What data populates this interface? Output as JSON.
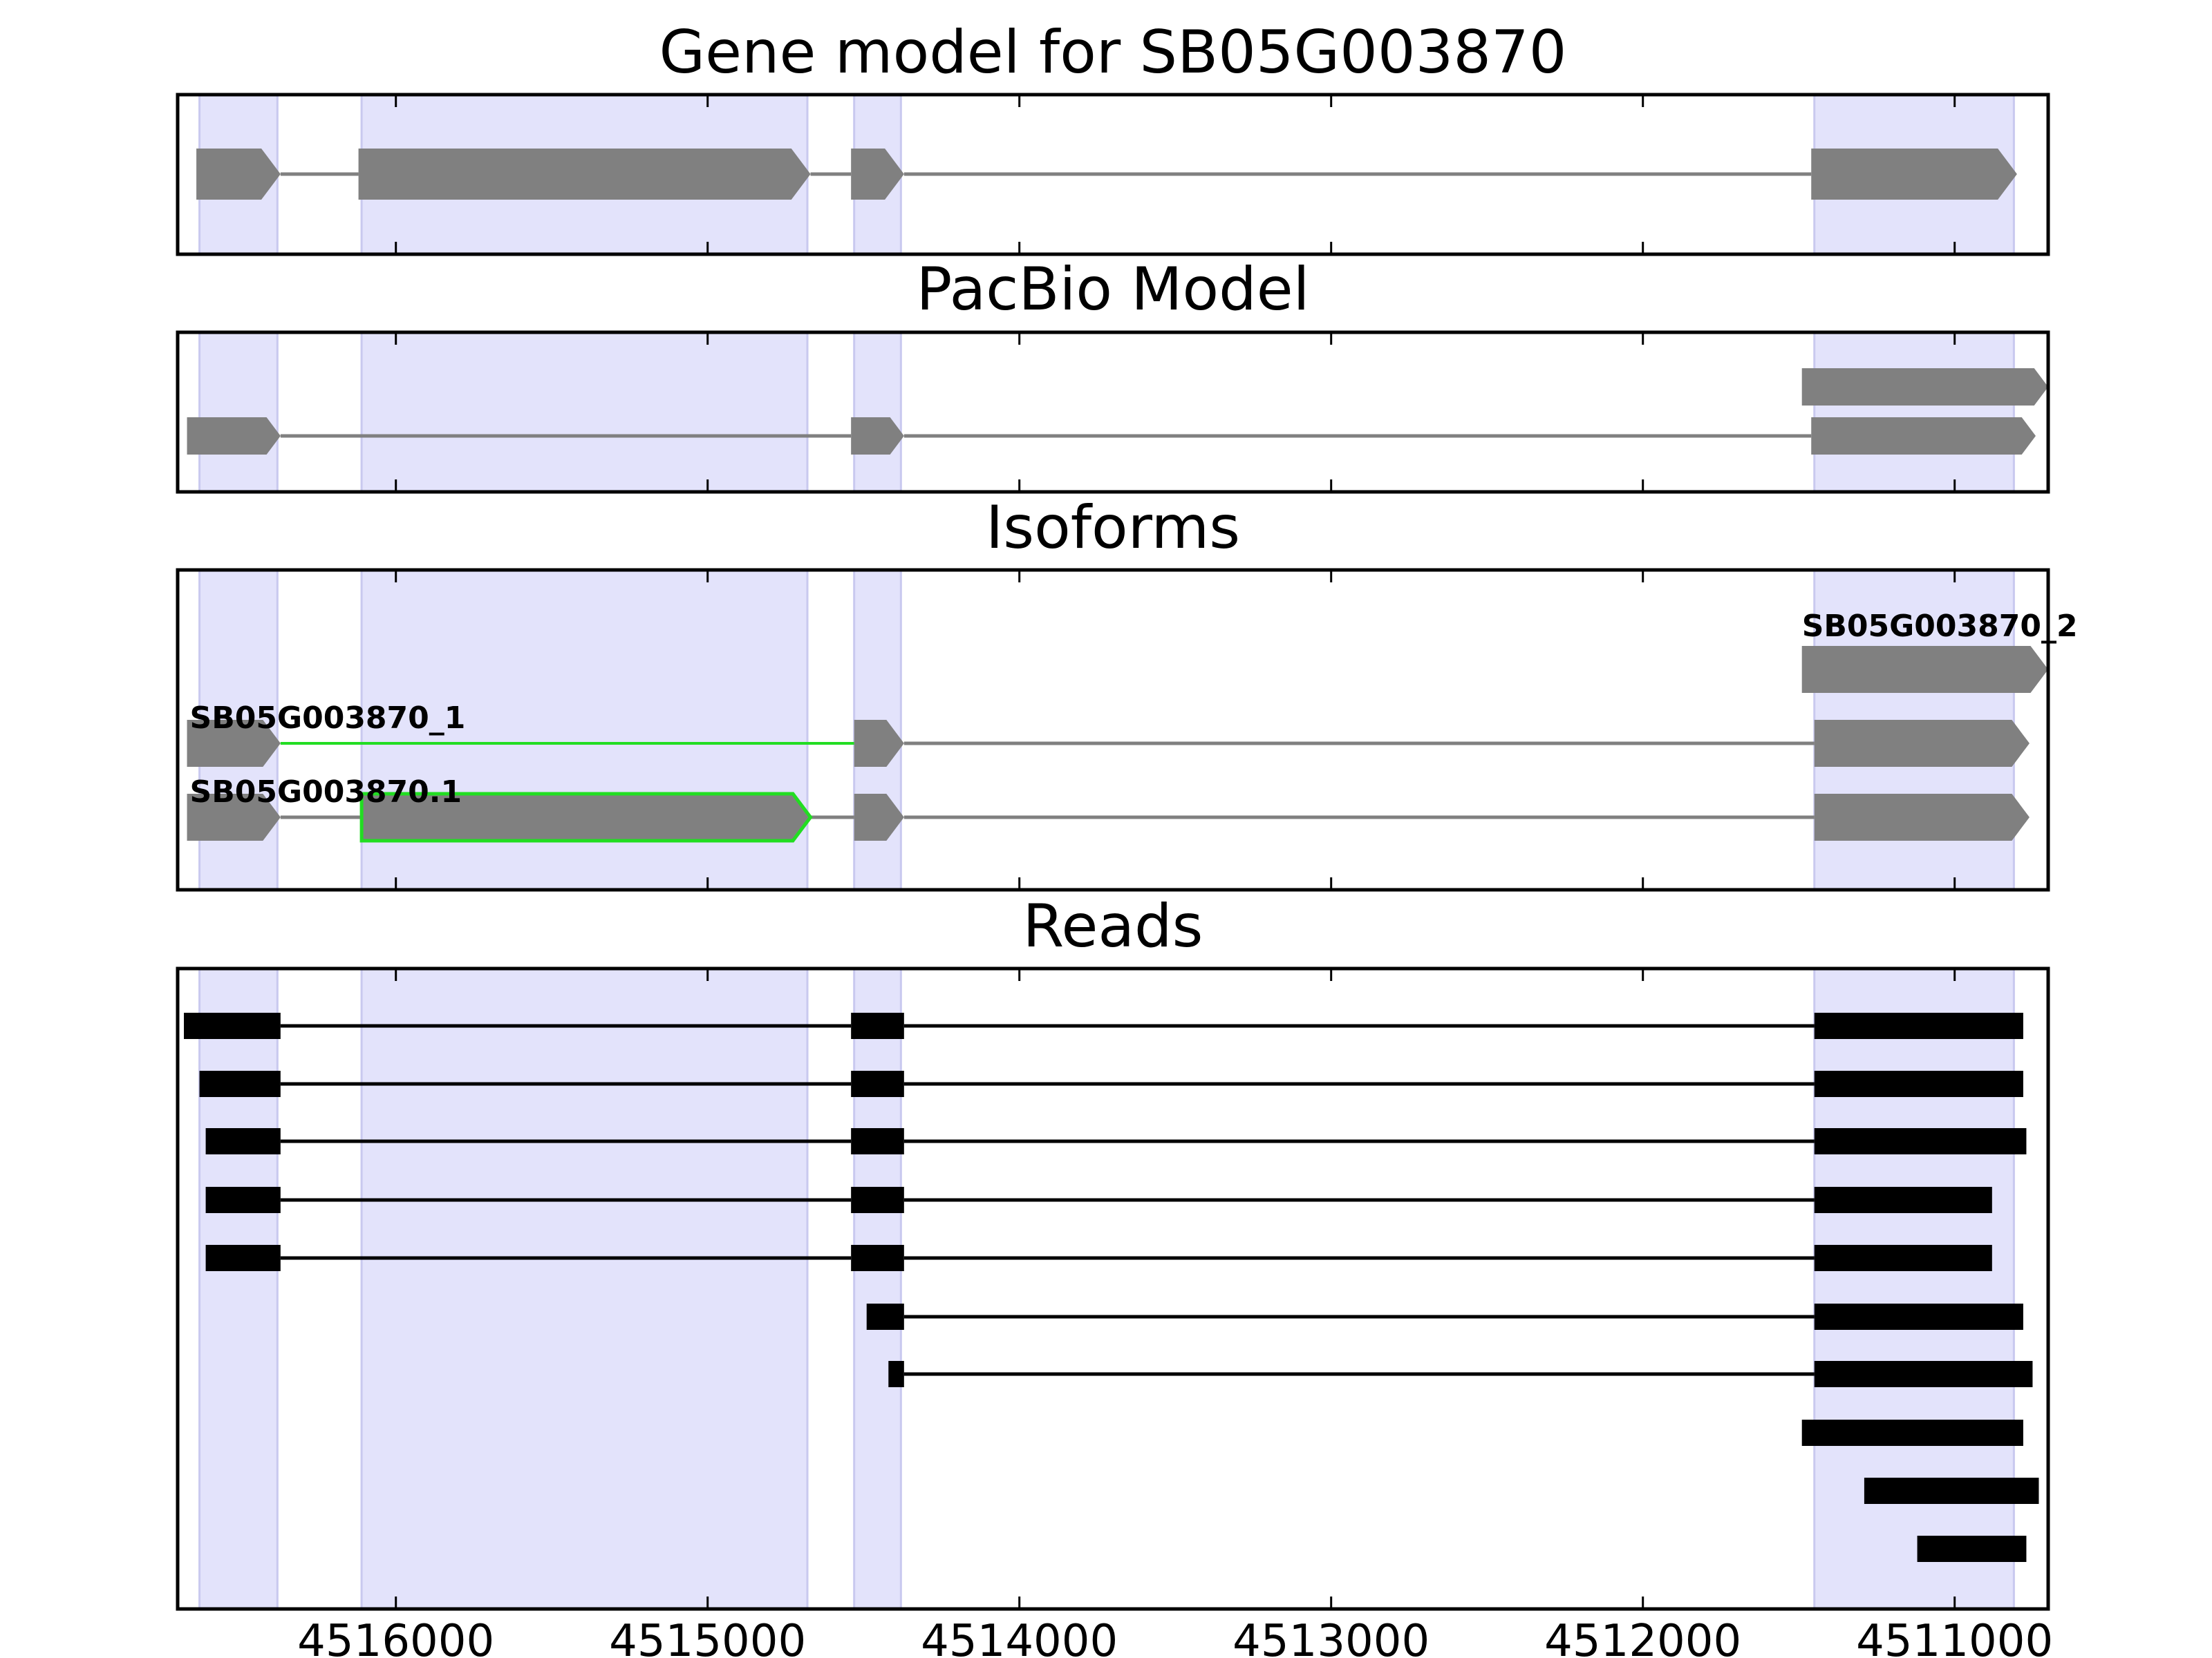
{
  "chart_data": {
    "type": "gene-structure",
    "x_reversed": true,
    "xlim": [
      4516700,
      4510700
    ],
    "x_ticks": [
      4516000,
      4515000,
      4514000,
      4513000,
      4512000,
      4511000
    ],
    "x_tick_labels": [
      "4516000",
      "4515000",
      "4514000",
      "4513000",
      "4512000",
      "4511000"
    ],
    "grid": false,
    "colors": {
      "exon_shade": "#e3e3fb",
      "exon_shade_edge": "#c9c9ef",
      "feature": "#808080",
      "highlight": "#22dd22",
      "read": "#000000",
      "axes": "#000000"
    },
    "exon_regions": [
      [
        4516630,
        4516380
      ],
      [
        4516110,
        4514680
      ],
      [
        4514530,
        4514380
      ],
      [
        4511450,
        4510810
      ]
    ],
    "panels": [
      {
        "title": "Gene model for SB05G003870",
        "features": [
          {
            "strand": "-",
            "exons": [
              [
                4516640,
                4516370
              ],
              [
                4516120,
                4514670
              ],
              [
                4514540,
                4514370
              ],
              [
                4511460,
                4510800
              ]
            ]
          }
        ]
      },
      {
        "title": "PacBio Model",
        "features": [
          {
            "strand": "-",
            "exons": [
              [
                4511490,
                4510700
              ]
            ]
          },
          {
            "strand": "-",
            "exons": [
              [
                4516670,
                4516370
              ],
              [
                4514540,
                4514370
              ],
              [
                4511460,
                4510740
              ]
            ]
          }
        ]
      },
      {
        "title": "Isoforms",
        "features": [
          {
            "label": "SB05G003870_2",
            "strand": "-",
            "exons": [
              [
                4511490,
                4510700
              ]
            ]
          },
          {
            "label": "SB05G003870_1",
            "strand": "-",
            "highlight_intron": [
              4516370,
              4514530
            ],
            "exons": [
              [
                4516670,
                4516370
              ],
              [
                4514530,
                4514370
              ],
              [
                4511450,
                4510760
              ]
            ]
          },
          {
            "label": "SB05G003870.1",
            "strand": "-",
            "highlight_exon": 1,
            "exons": [
              [
                4516670,
                4516370
              ],
              [
                4516110,
                4514670
              ],
              [
                4514530,
                4514370
              ],
              [
                4511450,
                4510760
              ]
            ]
          }
        ]
      },
      {
        "title": "Reads",
        "reads": [
          [
            [
              4516680,
              4516370
            ],
            [
              4514540,
              4514370
            ],
            [
              4511450,
              4510780
            ]
          ],
          [
            [
              4516630,
              4516370
            ],
            [
              4514540,
              4514370
            ],
            [
              4511450,
              4510780
            ]
          ],
          [
            [
              4516610,
              4516370
            ],
            [
              4514540,
              4514370
            ],
            [
              4511450,
              4510770
            ]
          ],
          [
            [
              4516610,
              4516370
            ],
            [
              4514540,
              4514370
            ],
            [
              4511450,
              4510880
            ]
          ],
          [
            [
              4516610,
              4516370
            ],
            [
              4514540,
              4514370
            ],
            [
              4511450,
              4510880
            ]
          ],
          [
            [
              4514490,
              4514370
            ],
            [
              4511450,
              4510780
            ]
          ],
          [
            [
              4514420,
              4514370
            ],
            [
              4511450,
              4510750
            ]
          ],
          [
            [
              4511490,
              4510780
            ]
          ],
          [
            [
              4511290,
              4510730
            ]
          ],
          [
            [
              4511120,
              4510770
            ]
          ]
        ]
      }
    ]
  }
}
